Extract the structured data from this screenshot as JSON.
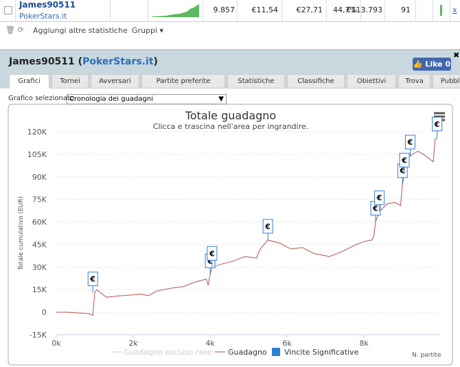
{
  "row": {
    "player": "James90511",
    "site": "PokerStars.it",
    "cells": [
      "9.857",
      "€11,54",
      "€27,71",
      "44,7%",
      "€113.793",
      "91"
    ],
    "close": "x"
  },
  "toolbar": {
    "add": "Aggiungi altre statistiche",
    "groups": "Gruppi"
  },
  "header": {
    "player": "James90511",
    "open": "(",
    "site": "PokerStars.it",
    "close": ")"
  },
  "like": {
    "label": "Like",
    "count": 0
  },
  "tabs": [
    "Grafici",
    "Tornei",
    "Avversari",
    "Partite preferite",
    "Statistiche",
    "Classifiche",
    "Obiettivi",
    "Trova",
    "Pubblica"
  ],
  "selector": {
    "label": "Grafico selezionato",
    "value": "Cronologia dei guadagni"
  },
  "chart_data": {
    "type": "line",
    "title": "Totale guadagno",
    "subtitle": "Clicca e trascina nell'area per ingrandire.",
    "y_label": "Totale cumulativo (EUR)",
    "x_label": "N. partite",
    "x": [
      0,
      300,
      600,
      850,
      950,
      1000,
      1050,
      1150,
      1300,
      1500,
      1700,
      2000,
      2200,
      2400,
      2600,
      2800,
      3000,
      3300,
      3600,
      3900,
      3950,
      4000,
      4050,
      4300,
      4600,
      4900,
      5200,
      5300,
      5500,
      5800,
      6100,
      6400,
      6700,
      6900,
      7100,
      7400,
      7800,
      8000,
      8200,
      8250,
      8300,
      8400,
      8600,
      8800,
      8950,
      9000,
      9050,
      9100,
      9200,
      9400,
      9600,
      9800,
      9850,
      9900
    ],
    "series": [
      {
        "name": "Guadagno",
        "color": "#b5504e",
        "values": [
          0,
          0,
          -500,
          -1000,
          -2000,
          13000,
          15000,
          13000,
          10000,
          10500,
          11000,
          11500,
          12000,
          11000,
          14000,
          15000,
          16000,
          17000,
          20000,
          22000,
          18000,
          25000,
          30000,
          32000,
          34000,
          37000,
          36000,
          42000,
          48000,
          46000,
          42000,
          43000,
          39000,
          38000,
          37000,
          40000,
          45000,
          47000,
          48000,
          50000,
          60000,
          67000,
          72000,
          73000,
          71000,
          85000,
          92000,
          100000,
          104000,
          107000,
          104000,
          100000,
          115000,
          116000
        ]
      }
    ],
    "hidden_series": {
      "name": "Guadagno escluso rake",
      "color": "#cccccc"
    },
    "flags": {
      "name": "Vincite Significative",
      "color": "#2f7ed8",
      "label": "€",
      "x": [
        950,
        4000,
        4050,
        5500,
        8300,
        8400,
        9000,
        9050,
        9200,
        9900
      ],
      "y": [
        13000,
        25000,
        30000,
        48000,
        60000,
        67000,
        85000,
        92000,
        104000,
        116000
      ]
    },
    "xlim": [
      0,
      9960
    ],
    "ylim": [
      -15000,
      120000
    ],
    "xticks": [
      {
        "value": 0,
        "label": "0k"
      },
      {
        "value": 2000,
        "label": "2k"
      },
      {
        "value": 4000,
        "label": "4k"
      },
      {
        "value": 6000,
        "label": "6k"
      },
      {
        "value": 8000,
        "label": "8k"
      }
    ],
    "yticks": [
      {
        "value": -15000,
        "label": "-15K"
      },
      {
        "value": 0,
        "label": "0"
      },
      {
        "value": 15000,
        "label": "15K"
      },
      {
        "value": 30000,
        "label": "30K"
      },
      {
        "value": 45000,
        "label": "45K"
      },
      {
        "value": 60000,
        "label": "60K"
      },
      {
        "value": 75000,
        "label": "75K"
      },
      {
        "value": 90000,
        "label": "90K"
      },
      {
        "value": 105000,
        "label": "105K"
      },
      {
        "value": 120000,
        "label": "120K"
      }
    ],
    "grid": true
  }
}
